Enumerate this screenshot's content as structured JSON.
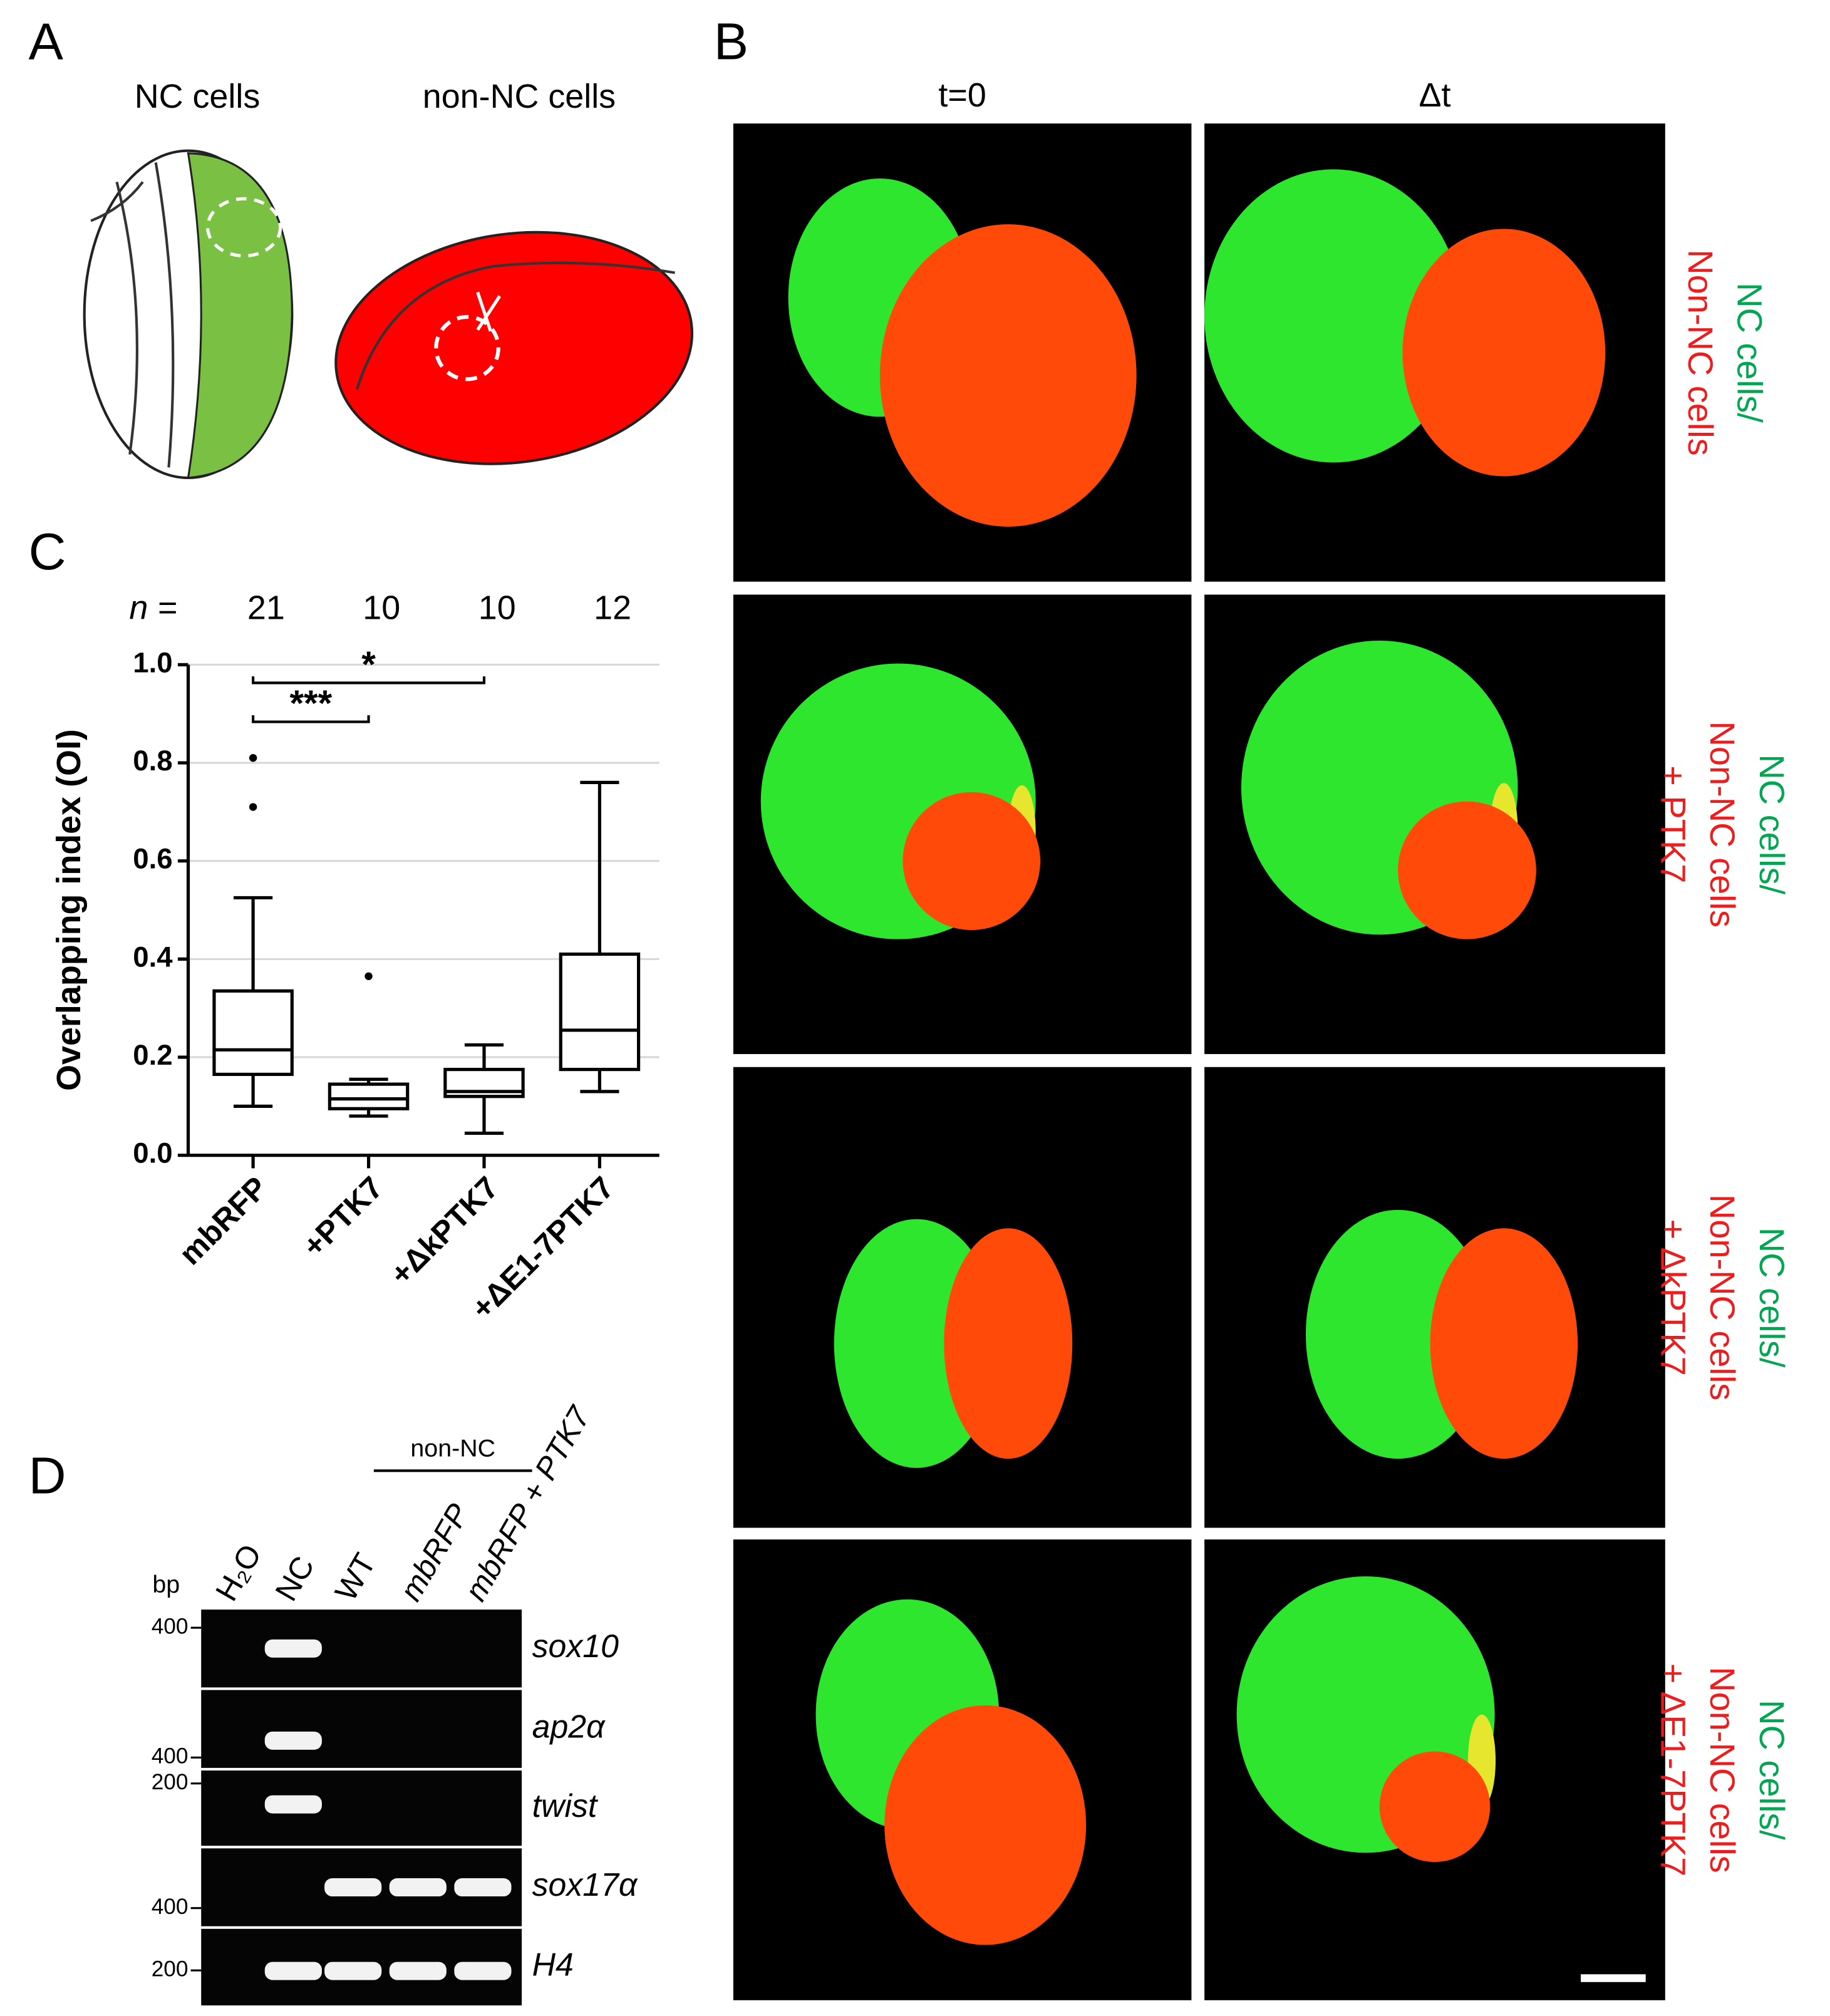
{
  "panels": {
    "A": {
      "label": "A",
      "left": "NC cells",
      "right": "non-NC cells"
    },
    "B": {
      "label": "B",
      "columns": [
        "t=0",
        "Δt"
      ],
      "rows": [
        [
          "NC cells/",
          "Non-NC cells"
        ],
        [
          "NC cells/",
          "Non-NC cells",
          "+ PTK7"
        ],
        [
          "NC cells/",
          "Non-NC cells",
          "+ ΔkPTK7"
        ],
        [
          "NC cells/",
          "Non-NC cells",
          "+ ΔE1-7PTK7"
        ]
      ]
    },
    "C": {
      "label": "C"
    },
    "D": {
      "label": "D",
      "group": "non-NC",
      "unit": "bp",
      "lanes": [
        "H₂O",
        "NC",
        "WT",
        "mbRFP",
        "mbRFP + PTK7"
      ],
      "genes": [
        "sox10",
        "ap2α",
        "twist",
        "sox17α",
        "H4"
      ],
      "markers": [
        "400",
        "400",
        "200",
        "400",
        "200"
      ]
    }
  },
  "chart_data": {
    "type": "box",
    "ylabel": "Overlapping index (OI)",
    "n_label": "n =",
    "categories": [
      "mbRFP",
      "+PTK7",
      "+ΔkPTK7",
      "+ΔE1-7PTK7"
    ],
    "n": [
      21,
      10,
      10,
      12
    ],
    "boxes": [
      {
        "min": 0.1,
        "q1": 0.165,
        "median": 0.215,
        "q3": 0.335,
        "max": 0.525,
        "outliers": [
          0.71,
          0.81
        ]
      },
      {
        "min": 0.08,
        "q1": 0.095,
        "median": 0.115,
        "q3": 0.145,
        "max": 0.155,
        "outliers": [
          0.365
        ]
      },
      {
        "min": 0.045,
        "q1": 0.12,
        "median": 0.13,
        "q3": 0.175,
        "max": 0.225,
        "outliers": []
      },
      {
        "min": 0.13,
        "q1": 0.175,
        "median": 0.255,
        "q3": 0.41,
        "max": 0.76,
        "outliers": []
      }
    ],
    "annotations": [
      {
        "text": "***",
        "from": 0,
        "to": 1
      },
      {
        "text": "*",
        "from": 0,
        "to": 2
      }
    ],
    "ylim": [
      0,
      1.0
    ],
    "yticks": [
      {
        "value": 0,
        "label": "0.0"
      },
      0.2,
      0.4,
      0.6,
      0.8,
      {
        "value": 1,
        "label": "1.0"
      }
    ],
    "grid": true
  }
}
